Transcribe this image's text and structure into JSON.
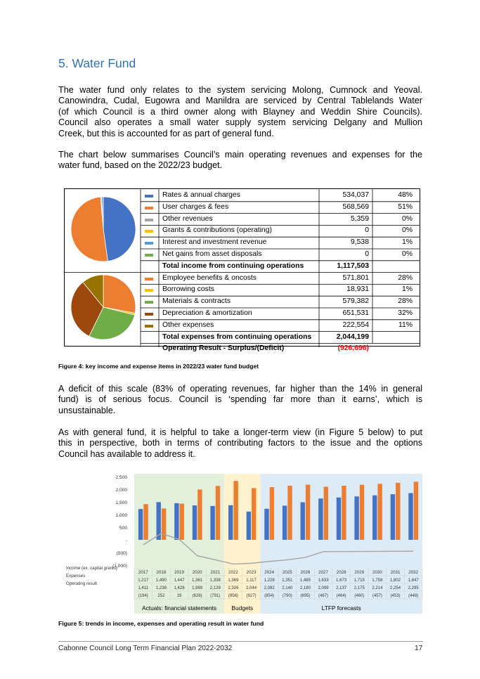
{
  "section_title": "5. Water Fund",
  "para1_lines": [
    "The water fund only relates to the system servicing Molong, Cumnock and Yeoval.",
    "Canowindra, Cudal, Eugowra and Manildra are serviced by Central Tablelands Water",
    "(of which Council is a third owner along with Blayney and Weddin Shire Councils).",
    "Council also operates a small water supply system servicing Delgany and Mullion",
    "Creek, but this is accounted for as part of general fund."
  ],
  "para2_lines": [
    "The chart below summarises Council’s main operating revenues and expenses for the",
    "water fund, based on the 2022/23 budget."
  ],
  "income_rows": [
    {
      "label": "Rates & annual charges",
      "value": "534,037",
      "pct": "48%",
      "color": "#4472c4",
      "num": 534037
    },
    {
      "label": "User charges & fees",
      "value": "568,569",
      "pct": "51%",
      "color": "#ed7d31",
      "num": 568569
    },
    {
      "label": "Other revenues",
      "value": "5,359",
      "pct": "0%",
      "color": "#a5a5a5",
      "num": 5359
    },
    {
      "label": "Grants & contributions (operating)",
      "value": "0",
      "pct": "0%",
      "color": "#ffc000",
      "num": 0
    },
    {
      "label": "Interest and investment revenue",
      "value": "9,538",
      "pct": "1%",
      "color": "#5b9bd5",
      "num": 9538
    },
    {
      "label": "Net gains from asset disposals",
      "value": "0",
      "pct": "0%",
      "color": "#70ad47",
      "num": 0
    }
  ],
  "income_total": {
    "label": "Total income from continuing operations",
    "value": "1,117,503"
  },
  "expense_rows": [
    {
      "label": "Employee benefits & oncosts",
      "value": "571,801",
      "pct": "28%",
      "color": "#ed7d31",
      "num": 571801
    },
    {
      "label": "Borrowing costs",
      "value": "18,931",
      "pct": "1%",
      "color": "#ffc000",
      "num": 18931
    },
    {
      "label": "Materials & contracts",
      "value": "579,382",
      "pct": "28%",
      "color": "#70ad47",
      "num": 579382
    },
    {
      "label": "Depreciation & amortization",
      "value": "651,531",
      "pct": "32%",
      "color": "#9e480e",
      "num": 651531
    },
    {
      "label": "Other expenses",
      "value": "222,554",
      "pct": "11%",
      "color": "#997300",
      "num": 222554
    }
  ],
  "expense_total": {
    "label": "Total expenses from continuing operations",
    "value": "2,044,199"
  },
  "operating_result": {
    "label": "Operating Result - Surplus/(Deficit)",
    "value": "(926,696)",
    "color": "#ff0000"
  },
  "figure4_caption": "Figure 4: key income and expense items in 2022/23 water fund budget",
  "para3_lines": [
    "A deficit of this scale (83% of operating revenues, far higher than the 14% in general",
    "fund) is of serious focus.  Council is ‘spending far more than it earns’, which is",
    "unsustainable."
  ],
  "para4_lines": [
    "As with general fund, it is helpful to take a longer-term view (in Figure 5 below) to put",
    "this in perspective, both in terms of contributing factors to the issue and the options",
    "Council has available to address it."
  ],
  "chart_data": {
    "type": "bar",
    "categories": [
      "2017",
      "2018",
      "2019",
      "2020",
      "2021",
      "2022",
      "2023",
      "2024",
      "2025",
      "2026",
      "2027",
      "2028",
      "2029",
      "2030",
      "2031",
      "2032"
    ],
    "series": [
      {
        "name": "Income (ex. capital grants)",
        "type": "bar",
        "color": "#4472c4",
        "values": [
          1217,
          1490,
          1447,
          1361,
          1338,
          1369,
          1117,
          1228,
          1351,
          1485,
          1633,
          1673,
          1715,
          1758,
          1802,
          1847
        ],
        "labels": [
          "1,217",
          "1,490",
          "1,447",
          "1,361",
          "1,338",
          "1,369",
          "1,117",
          "1,228",
          "1,351",
          "1,485",
          "1,633",
          "1,673",
          "1,715",
          "1,758",
          "1,802",
          "1,847"
        ]
      },
      {
        "name": "Expenses",
        "type": "bar",
        "color": "#ed7d31",
        "values": [
          1411,
          1238,
          1428,
          1989,
          2129,
          2326,
          2044,
          2082,
          2140,
          2180,
          2099,
          2137,
          2175,
          2214,
          2254,
          2295
        ],
        "labels": [
          "1,411",
          "1,238",
          "1,428",
          "1,989",
          "2,129",
          "2,326",
          "2,044",
          "2,082",
          "2,140",
          "2,180",
          "2,099",
          "2,137",
          "2,175",
          "2,214",
          "2,254",
          "2,295"
        ]
      },
      {
        "name": "Operating result",
        "type": "line",
        "color": "#a5a5a5",
        "values": [
          -194,
          252,
          19,
          -628,
          -791,
          -956,
          -927,
          -854,
          -790,
          -695,
          -467,
          -464,
          -460,
          -457,
          -453,
          -448
        ],
        "labels": [
          "(194)",
          "252",
          "19",
          "(628)",
          "(791)",
          "(956)",
          "(927)",
          "(854)",
          "(790)",
          "(695)",
          "(467)",
          "(464)",
          "(460)",
          "(457)",
          "(453)",
          "(448)"
        ]
      }
    ],
    "y_ticks": [
      {
        "value": 2500,
        "label": "2,500"
      },
      {
        "value": 2000,
        "label": "2,000"
      },
      {
        "value": 1500,
        "label": "1,500"
      },
      {
        "value": 1000,
        "label": "1,000"
      },
      {
        "value": 500,
        "label": "500"
      },
      {
        "value": 0,
        "label": "-"
      },
      {
        "value": -500,
        "label": "(500)"
      },
      {
        "value": -1000,
        "label": "(1,000)"
      }
    ],
    "ylim": [
      -1000,
      2500
    ],
    "bands": [
      {
        "label": "Actuals: financial statements",
        "from": 0,
        "to": 4,
        "color": "#e2efda"
      },
      {
        "label": "Budgets",
        "from": 5,
        "to": 6,
        "color": "#fff2cc"
      },
      {
        "label": "LTFP forecasts",
        "from": 7,
        "to": 15,
        "color": "#ddebf7"
      }
    ],
    "legend_placement": "table-left"
  },
  "figure5_caption": "Figure 5: trends in income, expenses and operating result in water fund",
  "footer_text": "Cabonne Council Long Term Financial Plan 2022-2032",
  "page_number": "17"
}
